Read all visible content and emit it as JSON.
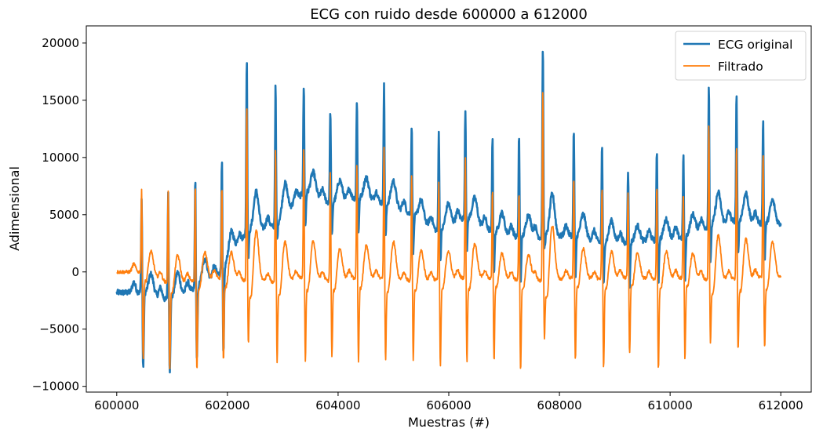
{
  "chart_data": {
    "type": "line",
    "title": "ECG con ruido desde 600000 a 612000",
    "xlabel": "Muestras (#)",
    "ylabel": "Adimensional",
    "xlim": [
      599450,
      612550
    ],
    "ylim": [
      -10500,
      21500
    ],
    "x_ticks": [
      600000,
      602000,
      604000,
      606000,
      608000,
      610000,
      612000
    ],
    "x_tick_labels": [
      "600000",
      "602000",
      "604000",
      "606000",
      "608000",
      "610000",
      "612000"
    ],
    "y_ticks": [
      -10000,
      -5000,
      0,
      5000,
      10000,
      15000,
      20000
    ],
    "y_tick_labels": [
      "−10000",
      "−5000",
      "0",
      "5000",
      "10000",
      "15000",
      "20000"
    ],
    "grid": false,
    "legend_position": "top-right",
    "beats": [
      {
        "x": 600450,
        "orig_peak": 6600,
        "orig_trough": -8400,
        "filt_peak": 7600,
        "filt_trough": -7300,
        "orig_base": -1800,
        "filt_base": 0
      },
      {
        "x": 600930,
        "orig_peak": 7000,
        "orig_trough": -8800,
        "filt_peak": 7500,
        "filt_trough": -8300,
        "orig_base": -2500,
        "filt_base": -1000
      },
      {
        "x": 601420,
        "orig_peak": 8300,
        "orig_trough": -8000,
        "filt_peak": 8000,
        "filt_trough": -8500,
        "orig_base": -1500,
        "filt_base": -800
      },
      {
        "x": 601900,
        "orig_peak": 10000,
        "orig_trough": -7500,
        "filt_peak": 7800,
        "filt_trough": -7700,
        "orig_base": 0,
        "filt_base": -500
      },
      {
        "x": 602350,
        "orig_peak": 18800,
        "orig_trough": 1200,
        "filt_peak": 15000,
        "filt_trough": -6000,
        "orig_base": 3500,
        "filt_base": -800
      },
      {
        "x": 602870,
        "orig_peak": 16400,
        "orig_trough": 2500,
        "filt_peak": 11200,
        "filt_trough": -7700,
        "orig_base": 4000,
        "filt_base": -900
      },
      {
        "x": 603380,
        "orig_peak": 16400,
        "orig_trough": 4000,
        "filt_peak": 11300,
        "filt_trough": -7500,
        "orig_base": 7000,
        "filt_base": -500
      },
      {
        "x": 603860,
        "orig_peak": 14300,
        "orig_trough": 3000,
        "filt_peak": 9000,
        "filt_trough": -7200,
        "orig_base": 6000,
        "filt_base": -800
      },
      {
        "x": 604340,
        "orig_peak": 15200,
        "orig_trough": 3500,
        "filt_peak": 9600,
        "filt_trough": -7700,
        "orig_base": 6500,
        "filt_base": -500
      },
      {
        "x": 604830,
        "orig_peak": 16400,
        "orig_trough": 3000,
        "filt_peak": 11300,
        "filt_trough": -7500,
        "orig_base": 6000,
        "filt_base": -600
      },
      {
        "x": 605330,
        "orig_peak": 13000,
        "orig_trough": 1800,
        "filt_peak": 8700,
        "filt_trough": -7500,
        "orig_base": 5000,
        "filt_base": -800
      },
      {
        "x": 605820,
        "orig_peak": 12500,
        "orig_trough": 800,
        "filt_peak": 8200,
        "filt_trough": -8200,
        "orig_base": 3500,
        "filt_base": -700
      },
      {
        "x": 606300,
        "orig_peak": 14400,
        "orig_trough": 2000,
        "filt_peak": 10300,
        "filt_trough": -7600,
        "orig_base": 4800,
        "filt_base": -500
      },
      {
        "x": 606790,
        "orig_peak": 11800,
        "orig_trough": 0,
        "filt_peak": 7500,
        "filt_trough": -7700,
        "orig_base": 3500,
        "filt_base": -600
      },
      {
        "x": 607270,
        "orig_peak": 12200,
        "orig_trough": -1000,
        "filt_peak": 7300,
        "filt_trough": -8600,
        "orig_base": 3000,
        "filt_base": -700
      },
      {
        "x": 607700,
        "orig_peak": 19900,
        "orig_trough": 2000,
        "filt_peak": 16300,
        "filt_trough": -5600,
        "orig_base": 3000,
        "filt_base": -800
      },
      {
        "x": 608260,
        "orig_peak": 12600,
        "orig_trough": -800,
        "filt_peak": 8700,
        "filt_trough": -7600,
        "orig_base": 3200,
        "filt_base": -500
      },
      {
        "x": 608770,
        "orig_peak": 11400,
        "orig_trough": -1300,
        "filt_peak": 7800,
        "filt_trough": -8200,
        "orig_base": 2500,
        "filt_base": -700
      },
      {
        "x": 609240,
        "orig_peak": 9000,
        "orig_trough": -1300,
        "filt_peak": 7300,
        "filt_trough": -7000,
        "orig_base": 2500,
        "filt_base": -500
      },
      {
        "x": 609760,
        "orig_peak": 10500,
        "orig_trough": -1000,
        "filt_peak": 7800,
        "filt_trough": -8300,
        "orig_base": 2800,
        "filt_base": -700
      },
      {
        "x": 610240,
        "orig_peak": 10500,
        "orig_trough": -1000,
        "filt_peak": 7300,
        "filt_trough": -7500,
        "orig_base": 3000,
        "filt_base": -500
      },
      {
        "x": 610700,
        "orig_peak": 16600,
        "orig_trough": 500,
        "filt_peak": 13200,
        "filt_trough": -6000,
        "orig_base": 4000,
        "filt_base": -700
      },
      {
        "x": 611200,
        "orig_peak": 15800,
        "orig_trough": 1500,
        "filt_peak": 11600,
        "filt_trough": -6500,
        "orig_base": 4500,
        "filt_base": -600
      },
      {
        "x": 611680,
        "orig_peak": 13500,
        "orig_trough": 1000,
        "filt_peak": 10800,
        "filt_trough": -6500,
        "orig_base": 4200,
        "filt_base": -500
      }
    ],
    "series": [
      {
        "name": "ECG original",
        "color": "#1f77b4",
        "width": 2.6
      },
      {
        "name": "Filtrado",
        "color": "#ff7f0e",
        "width": 1.8
      }
    ]
  }
}
